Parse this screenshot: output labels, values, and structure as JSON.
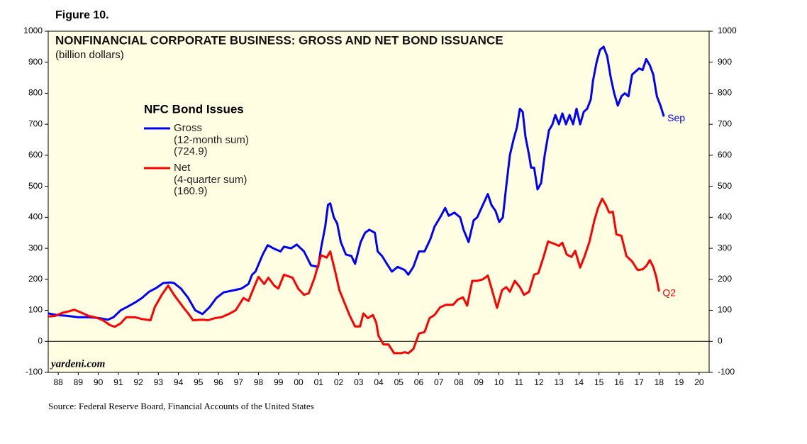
{
  "chart_data": {
    "type": "line",
    "figure_label": "Figure 10.",
    "title": "NONFINANCIAL CORPORATE BUSINESS: GROSS AND NET BOND ISSUANCE",
    "subtitle": "(billion dollars)",
    "legend_title": "NFC Bond Issues",
    "watermark": "yardeni.com",
    "source": "Source: Federal Reserve Board, Financial Accounts of the United States",
    "xlim": [
      1988,
      2021
    ],
    "xticks": [
      {
        "value": 1988.5,
        "label": "88"
      },
      {
        "value": 1989.5,
        "label": "89"
      },
      {
        "value": 1990.5,
        "label": "90"
      },
      {
        "value": 1991.5,
        "label": "91"
      },
      {
        "value": 1992.5,
        "label": "92"
      },
      {
        "value": 1993.5,
        "label": "93"
      },
      {
        "value": 1994.5,
        "label": "94"
      },
      {
        "value": 1995.5,
        "label": "95"
      },
      {
        "value": 1996.5,
        "label": "96"
      },
      {
        "value": 1997.5,
        "label": "97"
      },
      {
        "value": 1998.5,
        "label": "98"
      },
      {
        "value": 1999.5,
        "label": "99"
      },
      {
        "value": 2000.5,
        "label": "00"
      },
      {
        "value": 2001.5,
        "label": "01"
      },
      {
        "value": 2002.5,
        "label": "02"
      },
      {
        "value": 2003.5,
        "label": "03"
      },
      {
        "value": 2004.5,
        "label": "04"
      },
      {
        "value": 2005.5,
        "label": "05"
      },
      {
        "value": 2006.5,
        "label": "06"
      },
      {
        "value": 2007.5,
        "label": "07"
      },
      {
        "value": 2008.5,
        "label": "08"
      },
      {
        "value": 2009.5,
        "label": "09"
      },
      {
        "value": 2010.5,
        "label": "10"
      },
      {
        "value": 2011.5,
        "label": "11"
      },
      {
        "value": 2012.5,
        "label": "12"
      },
      {
        "value": 2013.5,
        "label": "13"
      },
      {
        "value": 2014.5,
        "label": "14"
      },
      {
        "value": 2015.5,
        "label": "15"
      },
      {
        "value": 2016.5,
        "label": "16"
      },
      {
        "value": 2017.5,
        "label": "17"
      },
      {
        "value": 2018.5,
        "label": "18"
      },
      {
        "value": 2019.5,
        "label": "19"
      },
      {
        "value": 2020.5,
        "label": "20"
      }
    ],
    "ylim": [
      -100,
      1000
    ],
    "yticks": [
      -100,
      0,
      100,
      200,
      300,
      400,
      500,
      600,
      700,
      800,
      900,
      1000
    ],
    "zero_line": true,
    "series": [
      {
        "name": "Gross",
        "notes": [
          "(12-month sum)",
          "(724.9)"
        ],
        "end_label": "Sep",
        "color": "#0000ff",
        "x": [
          1988.0,
          1988.43,
          1988.96,
          1989.49,
          1990.02,
          1990.55,
          1990.98,
          1991.26,
          1991.62,
          1991.97,
          1992.33,
          1992.68,
          1993.04,
          1993.39,
          1993.74,
          1994.1,
          1994.28,
          1994.63,
          1994.99,
          1995.34,
          1995.7,
          1996.05,
          1996.4,
          1996.76,
          1997.29,
          1997.65,
          1998.0,
          1998.18,
          1998.35,
          1998.71,
          1998.96,
          1999.24,
          1999.6,
          1999.77,
          2000.13,
          2000.41,
          2000.77,
          2001.12,
          2001.48,
          2001.62,
          2001.83,
          2001.97,
          2002.08,
          2002.26,
          2002.43,
          2002.61,
          2002.86,
          2003.14,
          2003.32,
          2003.6,
          2003.82,
          2004.03,
          2004.31,
          2004.45,
          2004.67,
          2004.91,
          2005.16,
          2005.45,
          2005.8,
          2005.98,
          2006.23,
          2006.51,
          2006.79,
          2007.08,
          2007.29,
          2007.57,
          2007.82,
          2008.0,
          2008.28,
          2008.57,
          2008.74,
          2008.99,
          2009.24,
          2009.42,
          2009.7,
          2009.95,
          2010.13,
          2010.34,
          2010.52,
          2010.7,
          2010.87,
          2011.05,
          2011.23,
          2011.4,
          2011.55,
          2011.69,
          2011.83,
          2012.01,
          2012.11,
          2012.26,
          2012.43,
          2012.61,
          2012.79,
          2013.0,
          2013.18,
          2013.32,
          2013.5,
          2013.67,
          2013.85,
          2014.03,
          2014.21,
          2014.38,
          2014.56,
          2014.74,
          2014.91,
          2015.09,
          2015.2,
          2015.38,
          2015.55,
          2015.73,
          2015.91,
          2016.09,
          2016.26,
          2016.44,
          2016.62,
          2016.79,
          2016.97,
          2017.15,
          2017.33,
          2017.5,
          2017.68,
          2017.86,
          2018.04,
          2018.21,
          2018.39,
          2018.57,
          2018.74
        ],
        "values": [
          90,
          85,
          82,
          78,
          78,
          75,
          70,
          78,
          100,
          112,
          125,
          140,
          160,
          172,
          188,
          190,
          188,
          170,
          140,
          100,
          88,
          110,
          140,
          158,
          165,
          170,
          185,
          215,
          225,
          280,
          310,
          300,
          290,
          305,
          300,
          312,
          290,
          245,
          240,
          300,
          370,
          440,
          445,
          400,
          380,
          320,
          280,
          275,
          250,
          320,
          350,
          360,
          350,
          290,
          275,
          250,
          225,
          240,
          230,
          215,
          240,
          290,
          290,
          330,
          370,
          400,
          430,
          405,
          415,
          400,
          360,
          320,
          390,
          400,
          440,
          475,
          440,
          420,
          385,
          400,
          500,
          600,
          650,
          690,
          750,
          740,
          660,
          600,
          560,
          560,
          490,
          510,
          600,
          680,
          700,
          730,
          700,
          735,
          700,
          730,
          700,
          750,
          700,
          740,
          750,
          780,
          840,
          900,
          940,
          950,
          920,
          850,
          800,
          760,
          790,
          800,
          790,
          860,
          870,
          880,
          875,
          910,
          890,
          860,
          790,
          760,
          724.9
        ]
      },
      {
        "name": "Net",
        "notes": [
          "(4-quarter sum)",
          "(160.9)"
        ],
        "end_label": "Q2",
        "color": "#ff0000",
        "x": [
          1988.0,
          1988.35,
          1988.71,
          1989.03,
          1989.31,
          1989.67,
          1990.02,
          1990.38,
          1990.73,
          1991.09,
          1991.33,
          1991.62,
          1991.9,
          1992.33,
          1992.68,
          1993.11,
          1993.32,
          1993.67,
          1993.99,
          1994.28,
          1994.74,
          1994.99,
          1995.23,
          1995.7,
          1995.98,
          1996.33,
          1996.65,
          1997.01,
          1997.36,
          1997.75,
          1998.0,
          1998.28,
          1998.5,
          1998.78,
          1998.99,
          1999.28,
          1999.49,
          1999.77,
          2000.2,
          2000.48,
          2000.77,
          2001.01,
          2001.3,
          2001.62,
          2001.9,
          2002.08,
          2002.33,
          2002.54,
          2002.82,
          2003.04,
          2003.32,
          2003.57,
          2003.74,
          2003.96,
          2004.21,
          2004.38,
          2004.49,
          2004.74,
          2004.99,
          2005.27,
          2005.62,
          2005.8,
          2005.98,
          2006.23,
          2006.51,
          2006.79,
          2007.04,
          2007.29,
          2007.57,
          2007.86,
          2008.21,
          2008.46,
          2008.71,
          2008.92,
          2009.17,
          2009.42,
          2009.7,
          2009.95,
          2010.16,
          2010.41,
          2010.66,
          2010.87,
          2011.05,
          2011.3,
          2011.55,
          2011.76,
          2012.01,
          2012.26,
          2012.47,
          2012.72,
          2012.96,
          2013.25,
          2013.5,
          2013.67,
          2013.89,
          2014.13,
          2014.31,
          2014.56,
          2014.77,
          2015.02,
          2015.27,
          2015.45,
          2015.66,
          2015.84,
          2016.01,
          2016.19,
          2016.37,
          2016.62,
          2016.87,
          2017.15,
          2017.43,
          2017.68,
          2017.86,
          2018.04,
          2018.21,
          2018.35,
          2018.5
        ],
        "values": [
          80,
          82,
          92,
          97,
          102,
          92,
          82,
          77,
          68,
          52,
          47,
          58,
          78,
          78,
          72,
          68,
          110,
          150,
          180,
          150,
          110,
          90,
          68,
          70,
          68,
          75,
          78,
          88,
          100,
          140,
          130,
          175,
          208,
          185,
          205,
          180,
          170,
          215,
          205,
          170,
          150,
          155,
          205,
          278,
          270,
          290,
          225,
          165,
          120,
          85,
          48,
          48,
          90,
          75,
          85,
          60,
          18,
          -10,
          -10,
          -38,
          -38,
          -35,
          -38,
          -25,
          25,
          30,
          75,
          85,
          110,
          118,
          118,
          135,
          142,
          115,
          195,
          195,
          200,
          212,
          165,
          108,
          165,
          175,
          160,
          195,
          175,
          150,
          160,
          215,
          220,
          270,
          322,
          315,
          308,
          318,
          280,
          272,
          292,
          238,
          272,
          320,
          390,
          430,
          460,
          440,
          415,
          418,
          345,
          340,
          275,
          258,
          230,
          232,
          243,
          262,
          240,
          210,
          160.9
        ]
      }
    ]
  }
}
